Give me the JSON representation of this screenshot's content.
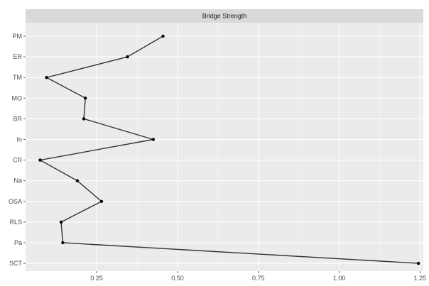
{
  "chart_data": {
    "type": "line",
    "title": "",
    "facet_label": "Bridge Strength",
    "xlabel": "",
    "ylabel": "",
    "xlim": [
      0.03,
      1.26
    ],
    "x_ticks": [
      0.25,
      0.5,
      0.75,
      1.0,
      1.25
    ],
    "x_tick_labels": [
      "0.25",
      "0.50",
      "0.75",
      "1.00",
      "1.25"
    ],
    "categories": [
      "PM",
      "ER",
      "TM",
      "MO",
      "BR",
      "In",
      "CR",
      "Na",
      "OSA",
      "RLS",
      "Pa",
      "SCT"
    ],
    "values": [
      0.455,
      0.345,
      0.095,
      0.215,
      0.21,
      0.425,
      0.075,
      0.19,
      0.265,
      0.14,
      0.145,
      1.245
    ],
    "grid": true,
    "legend": "none",
    "colors": {
      "panel_background": "#ebebeb",
      "grid_major": "#ffffff",
      "strip_background": "#d9d9d9",
      "line": "#333333",
      "point": "#000000"
    }
  }
}
